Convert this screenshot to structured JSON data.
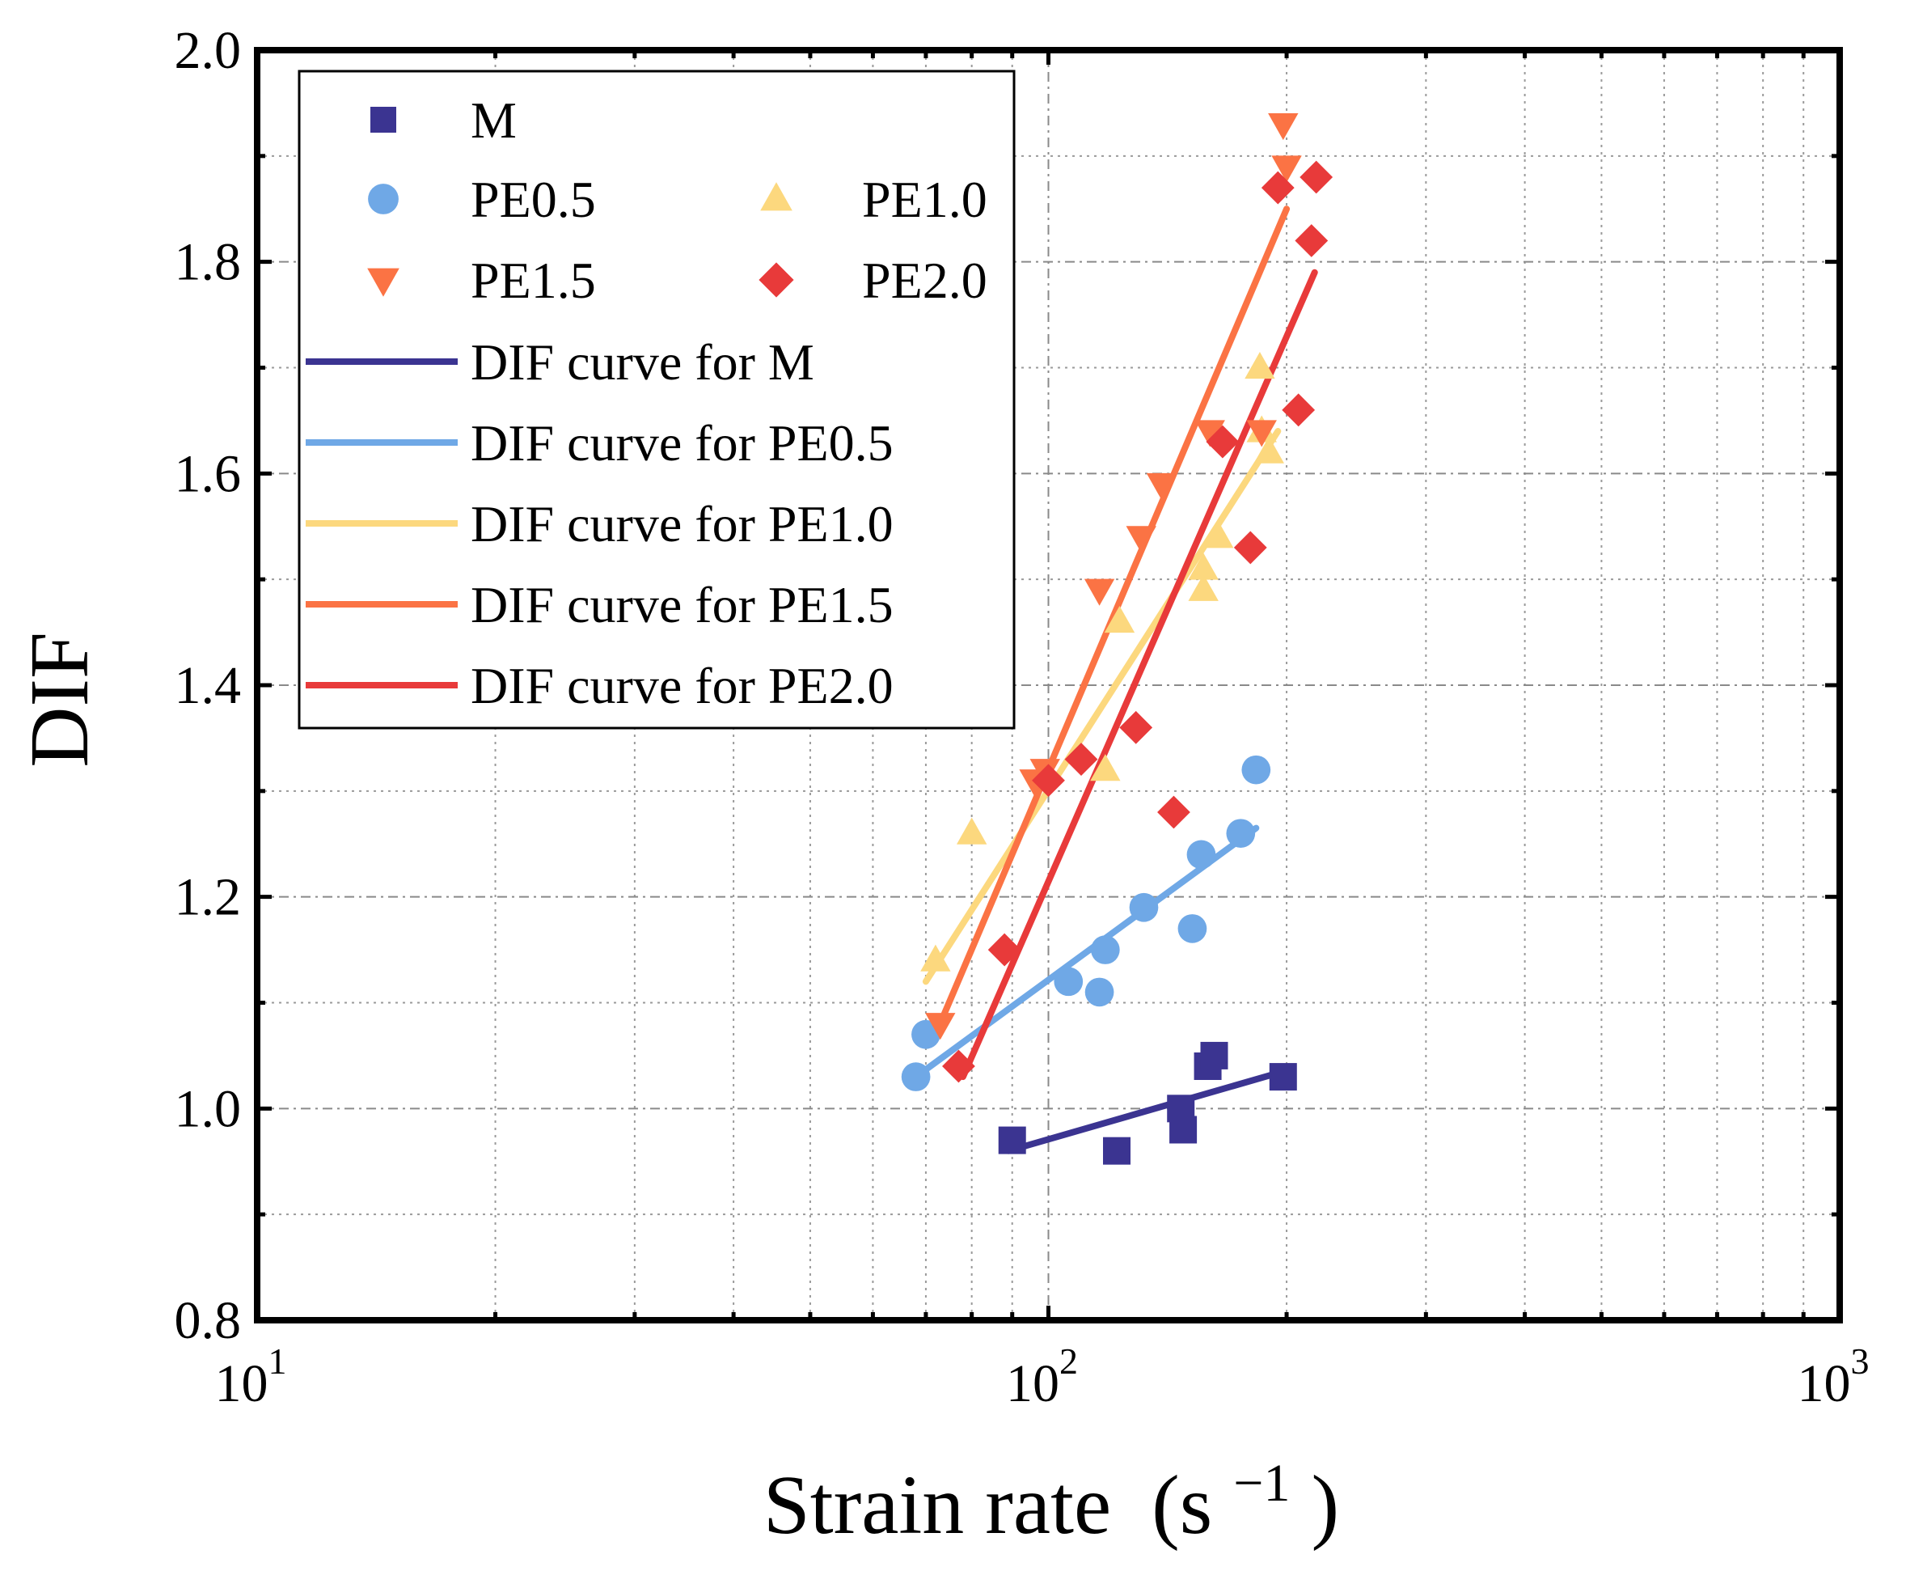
{
  "chart_data": {
    "type": "scatter",
    "xscale": "log",
    "xlim": [
      10,
      1000
    ],
    "ylim": [
      0.8,
      2.0
    ],
    "xlabel": "Strain rate",
    "xlabel_unit_base": "(s",
    "xlabel_unit_exp": "−1",
    "xlabel_unit_close": ")",
    "ylabel": "DIF",
    "y_ticks": [
      "0.8",
      "1.0",
      "1.2",
      "1.4",
      "1.6",
      "1.8",
      "2.0"
    ],
    "x_ticks": [
      {
        "value": 10,
        "base": "10",
        "exp": "1"
      },
      {
        "value": 100,
        "base": "10",
        "exp": "2"
      },
      {
        "value": 1000,
        "base": "10",
        "exp": "3"
      }
    ],
    "grid": true,
    "legend_position": "top-left",
    "series": [
      {
        "name": "M",
        "marker": "square",
        "color": "#3b3491",
        "points": [
          [
            90,
            0.97
          ],
          [
            122,
            0.96
          ],
          [
            147,
            1.0
          ],
          [
            148,
            0.98
          ],
          [
            159,
            1.04
          ],
          [
            162,
            1.05
          ],
          [
            198,
            1.03
          ]
        ],
        "fit_label": "DIF curve for M",
        "fit": [
          [
            89,
            0.96
          ],
          [
            198,
            1.035
          ]
        ]
      },
      {
        "name": "PE0.5",
        "marker": "circle",
        "color": "#6fa8e6",
        "points": [
          [
            68,
            1.03
          ],
          [
            70,
            1.07
          ],
          [
            106,
            1.12
          ],
          [
            116,
            1.11
          ],
          [
            118,
            1.15
          ],
          [
            132,
            1.19
          ],
          [
            152,
            1.17
          ],
          [
            156,
            1.24
          ],
          [
            175,
            1.26
          ],
          [
            183,
            1.32
          ]
        ],
        "fit_label": "DIF curve for PE0.5",
        "fit": [
          [
            68,
            1.03
          ],
          [
            183,
            1.265
          ]
        ]
      },
      {
        "name": "PE1.0",
        "marker": "triangle-up",
        "color": "#fcd87e",
        "points": [
          [
            72,
            1.14
          ],
          [
            80,
            1.26
          ],
          [
            118,
            1.32
          ],
          [
            123,
            1.46
          ],
          [
            157,
            1.49
          ],
          [
            157,
            1.51
          ],
          [
            164,
            1.54
          ],
          [
            186,
            1.64
          ],
          [
            190,
            1.62
          ],
          [
            185,
            1.7
          ]
        ],
        "fit_label": "DIF curve for PE1.0",
        "fit": [
          [
            70,
            1.12
          ],
          [
            195,
            1.64
          ]
        ]
      },
      {
        "name": "PE1.5",
        "marker": "triangle-down",
        "color": "#fb7344",
        "points": [
          [
            73,
            1.08
          ],
          [
            96,
            1.31
          ],
          [
            99,
            1.32
          ],
          [
            116,
            1.49
          ],
          [
            131,
            1.54
          ],
          [
            139,
            1.59
          ],
          [
            160,
            1.64
          ],
          [
            186,
            1.64
          ],
          [
            198,
            1.93
          ],
          [
            200,
            1.89
          ]
        ],
        "fit_label": "DIF curve for PE1.5",
        "fit": [
          [
            72,
            1.07
          ],
          [
            200,
            1.85
          ]
        ]
      },
      {
        "name": "PE2.0",
        "marker": "diamond",
        "color": "#e83a3a",
        "points": [
          [
            77,
            1.04
          ],
          [
            88,
            1.15
          ],
          [
            100,
            1.31
          ],
          [
            110,
            1.33
          ],
          [
            129,
            1.36
          ],
          [
            144,
            1.28
          ],
          [
            166,
            1.63
          ],
          [
            180,
            1.53
          ],
          [
            195,
            1.87
          ],
          [
            207,
            1.66
          ],
          [
            215,
            1.82
          ],
          [
            218,
            1.88
          ]
        ],
        "fit_label": "DIF curve for PE2.0",
        "fit": [
          [
            78,
            1.03
          ],
          [
            217,
            1.79
          ]
        ]
      }
    ]
  }
}
